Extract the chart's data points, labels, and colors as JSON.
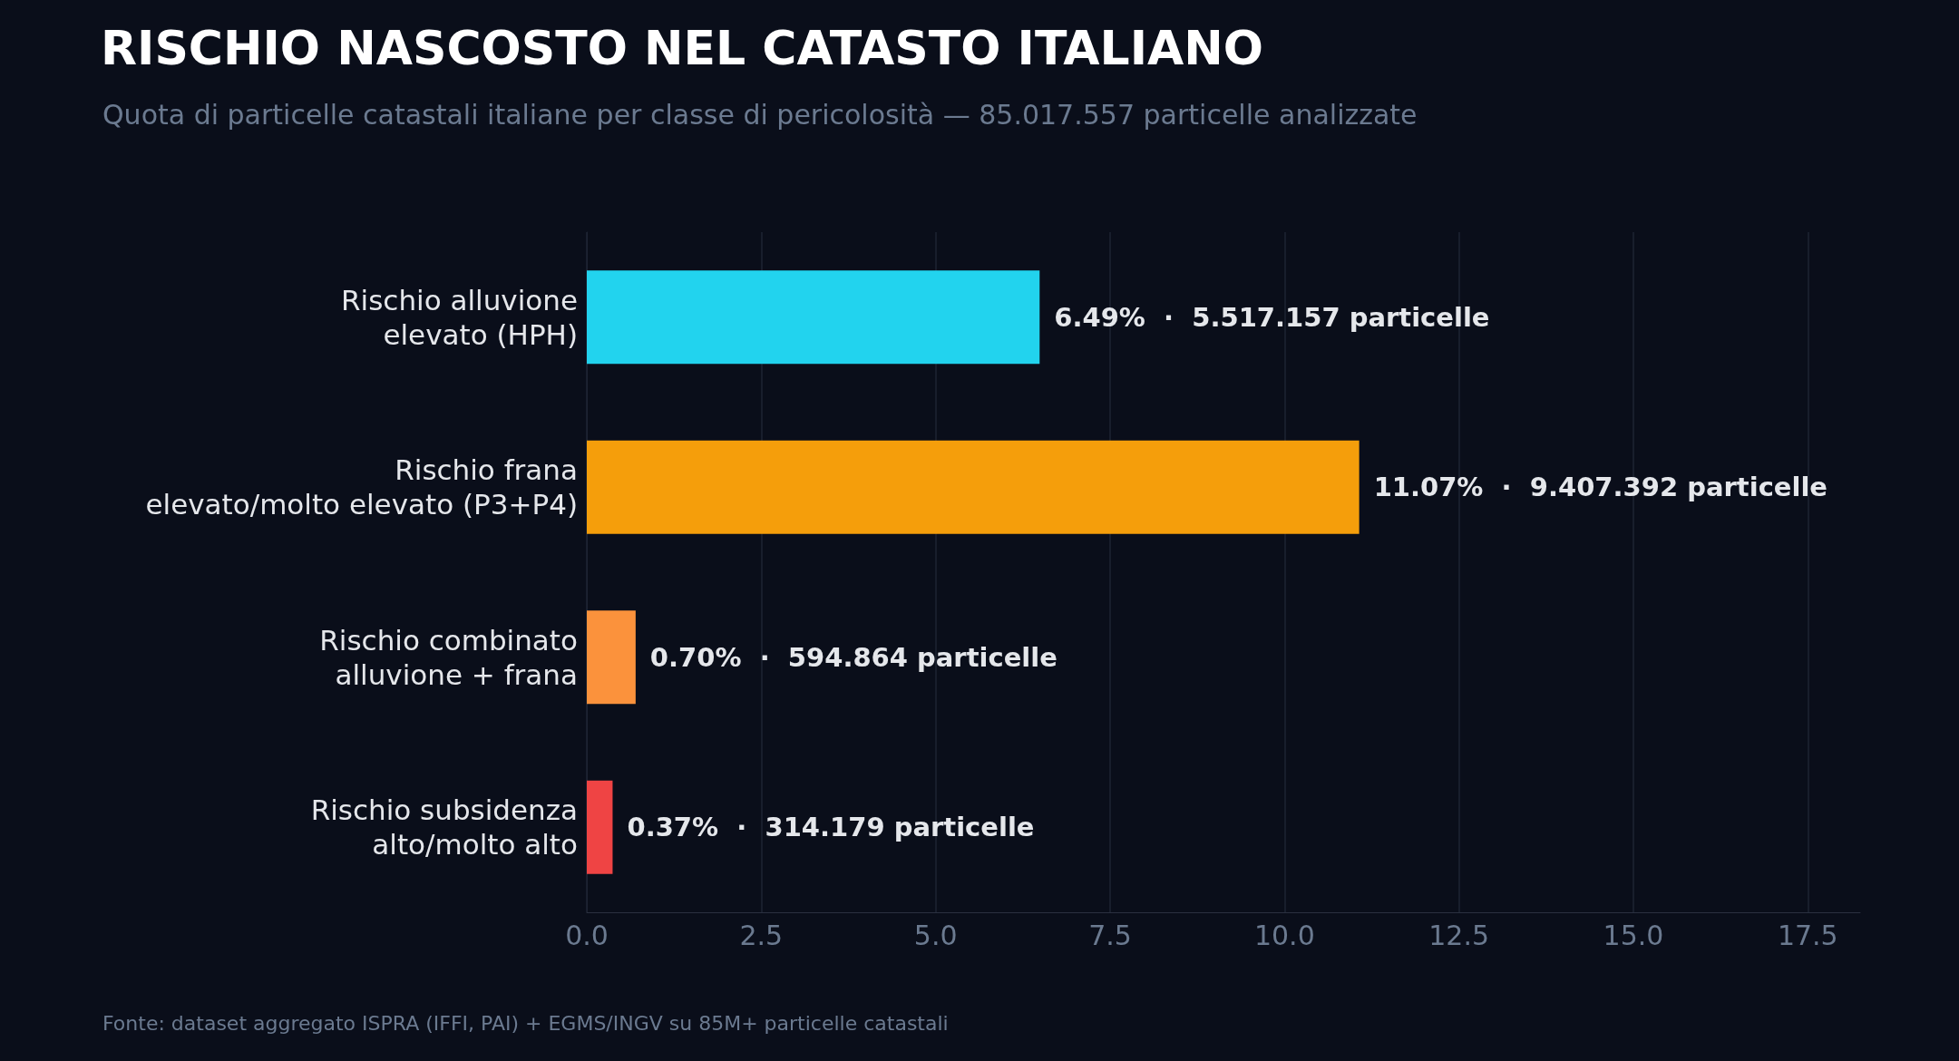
{
  "chart_data": {
    "type": "bar",
    "orientation": "horizontal",
    "title": "RISCHIO NASCOSTO NEL CATASTO ITALIANO",
    "subtitle": "Quota di particelle catastali italiane per classe di pericolosità — 85.017.557 particelle analizzate",
    "categories": [
      "Rischio alluvione\nelevato (HPH)",
      "Rischio frana\nelevato/molto elevato (P3+P4)",
      "Rischio combinato\nalluvione + frana",
      "Rischio subsidenza\nalto/molto alto"
    ],
    "values": [
      6.49,
      11.07,
      0.7,
      0.37
    ],
    "colors": [
      "#22d3ee",
      "#f59e0b",
      "#fb923c",
      "#ef4444"
    ],
    "value_labels": [
      "6.49%  ·  5.517.157 particelle",
      "11.07%  ·  9.407.392 particelle",
      "0.70%  ·  594.864 particelle",
      "0.37%  ·  314.179 particelle"
    ],
    "xlim": [
      0,
      18.25
    ],
    "xticks": [
      {
        "value": 0,
        "label": "0.0"
      },
      2.5,
      {
        "value": 5,
        "label": "5.0"
      },
      7.5,
      {
        "value": 10,
        "label": "10.0"
      },
      12.5,
      {
        "value": 15,
        "label": "15.0"
      },
      17.5
    ],
    "grid": "x",
    "annotations": [
      "Fonte: dataset aggregato ISPRA (IFFI, PAI) + EGMS/INGV su 85M+ particelle catastali"
    ]
  }
}
